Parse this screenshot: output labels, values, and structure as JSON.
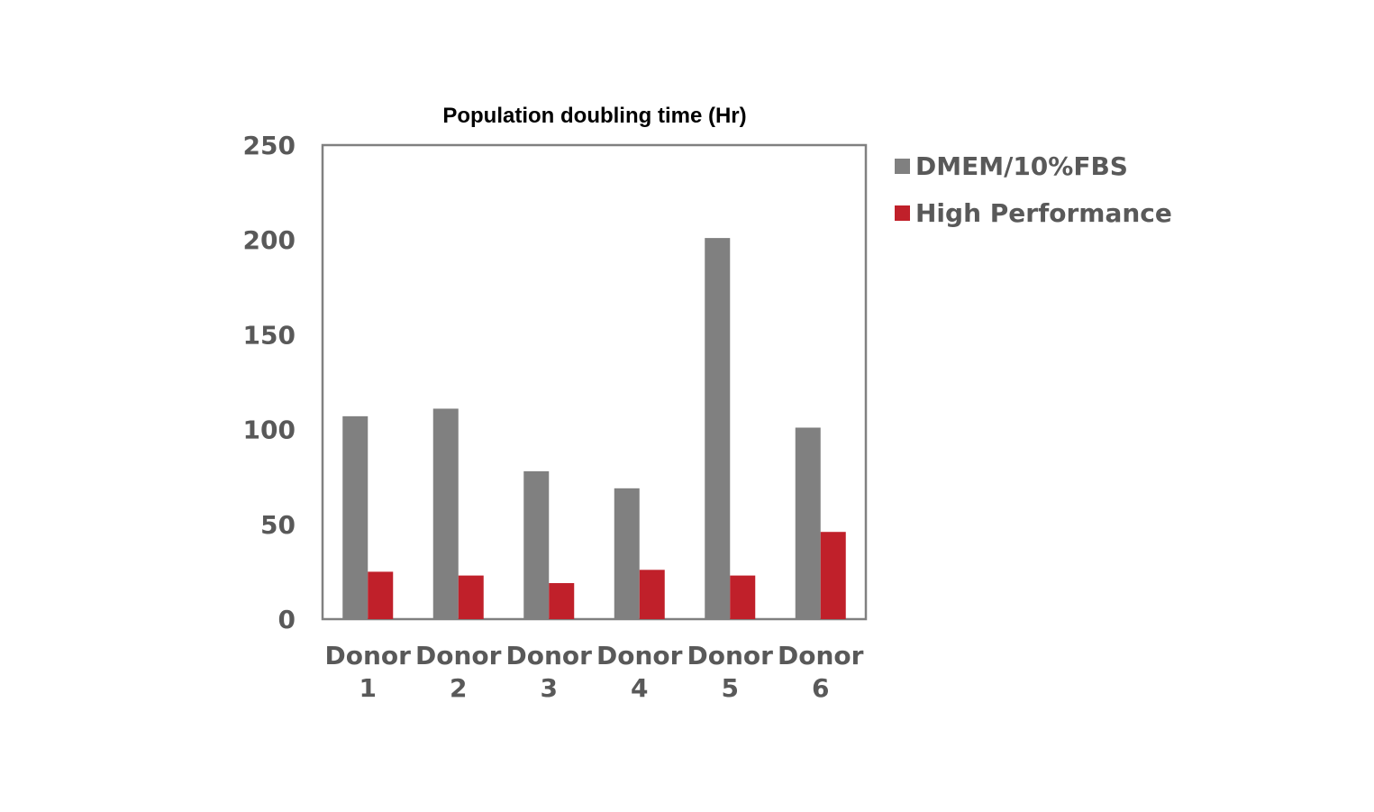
{
  "chart_data": {
    "type": "bar",
    "title": "Population doubling time (Hr)",
    "categories": [
      [
        "Donor",
        "1"
      ],
      [
        "Donor",
        "2"
      ],
      [
        "Donor",
        "3"
      ],
      [
        "Donor",
        "4"
      ],
      [
        "Donor",
        "5"
      ],
      [
        "Donor",
        "6"
      ]
    ],
    "series": [
      {
        "name": "DMEM/10%FBS",
        "color": "#808080",
        "values": [
          107,
          111,
          78,
          69,
          201,
          101
        ]
      },
      {
        "name": "High Performance",
        "color": "#c0202a",
        "values": [
          25,
          23,
          19,
          26,
          23,
          46
        ]
      }
    ],
    "ylim": [
      0,
      250
    ],
    "yticks": [
      0,
      50,
      100,
      150,
      200,
      250
    ],
    "xlabel": "",
    "ylabel": "",
    "grid": false,
    "legend_position": "right"
  }
}
